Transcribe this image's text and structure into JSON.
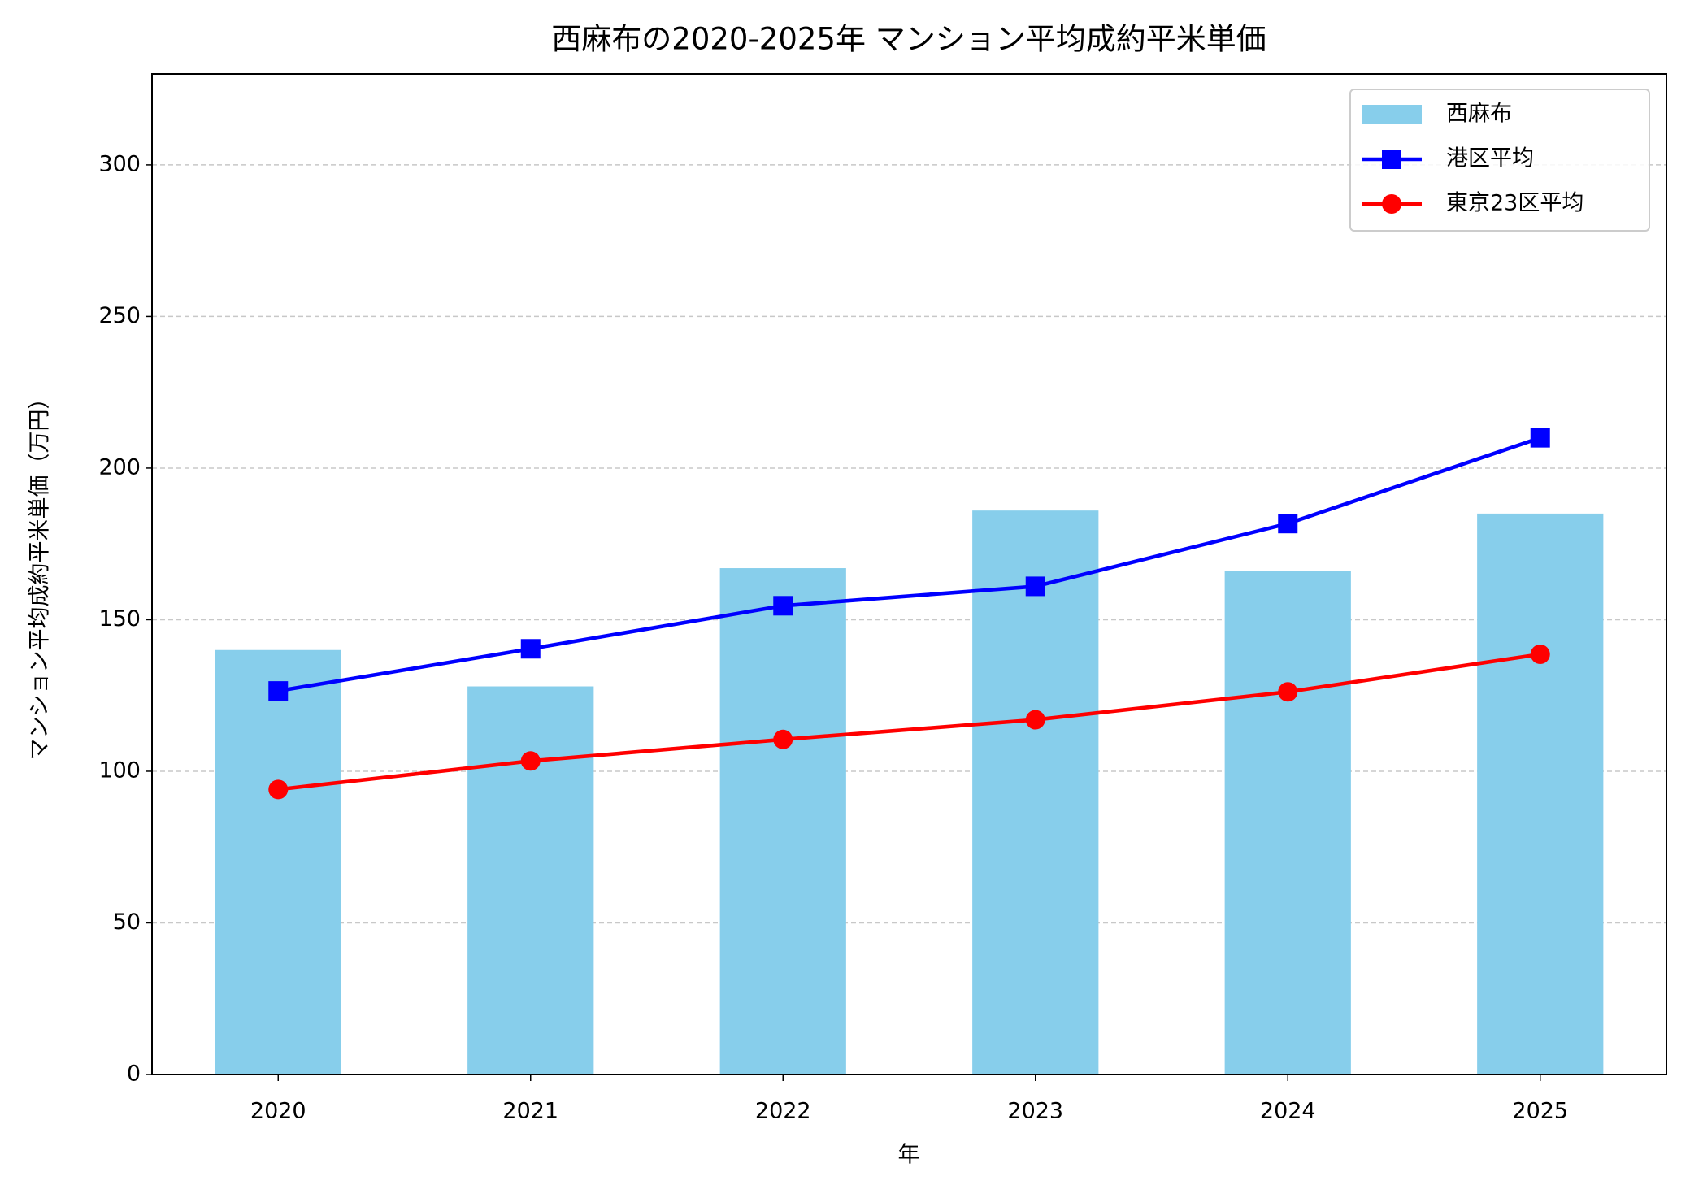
{
  "chart_data": {
    "type": "bar_line",
    "title": "西麻布の2020-2025年 マンション平均成約平米単価",
    "x_label": "年",
    "y_label": "マンション平均成約平米単価（万円）",
    "categories": [
      "2020",
      "2021",
      "2022",
      "2023",
      "2024",
      "2025"
    ],
    "series": [
      {
        "name": "西麻布",
        "type": "bar",
        "color": "#87ceeb",
        "values": [
          140,
          128,
          167,
          186,
          166,
          185
        ]
      },
      {
        "name": "港区平均",
        "type": "line",
        "marker": "square",
        "color": "#0000ff",
        "values": [
          126.5,
          140.4,
          154.6,
          161,
          181.7,
          210
        ]
      },
      {
        "name": "東京23区平均",
        "type": "line",
        "marker": "circle",
        "color": "#ff0000",
        "values": [
          94,
          103.4,
          110.5,
          117,
          126.2,
          138.6
        ]
      }
    ],
    "ylim": [
      0,
      330
    ],
    "yticks": [
      0,
      50,
      100,
      150,
      200,
      250,
      300
    ],
    "grid": true,
    "legend": "upper right"
  }
}
